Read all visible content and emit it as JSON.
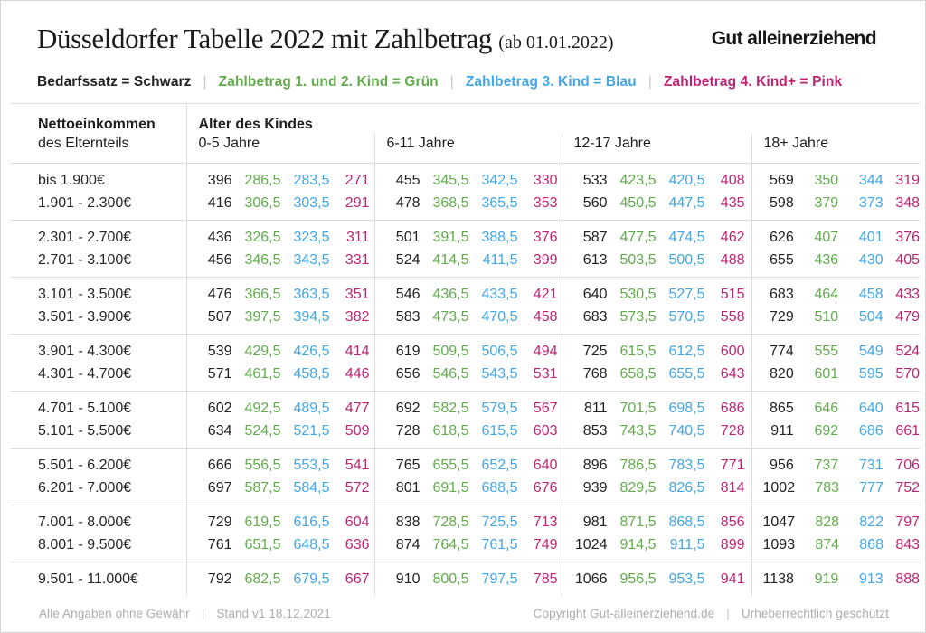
{
  "page": {
    "background": "#ffffff",
    "border_color": "#d6d6d6",
    "grid_line_color": "#dcdcdc"
  },
  "header": {
    "title": "Düsseldorfer Tabelle 2022 mit Zahlbetrag",
    "title_suffix": "(ab 01.01.2022)",
    "brand": "Gut alleinerziehend"
  },
  "legend": {
    "separator": "|",
    "items": [
      {
        "label": "Bedarfssatz = Schwarz",
        "color": "#222222"
      },
      {
        "label": "Zahlbetrag 1. und 2. Kind = Grün",
        "color": "#61ad4b"
      },
      {
        "label": "Zahlbetrag 3. Kind = Blau",
        "color": "#42a7e5"
      },
      {
        "label": "Zahlbetrag 4. Kind+ = Pink",
        "color": "#bd2478"
      }
    ]
  },
  "table_header": {
    "income_line1": "Nettoeinkommen",
    "income_line2": "des Elternteils",
    "age_title": "Alter des Kindes"
  },
  "chart_data": {
    "type": "table",
    "title": "Düsseldorfer Tabelle 2022 mit Zahlbetrag (ab 01.01.2022)",
    "row_axis_label": "Nettoeinkommen des Elternteils",
    "columns": [
      "0-5 Jahre",
      "6-11 Jahre",
      "12-17 Jahre",
      "18+ Jahre"
    ],
    "value_series": [
      "Bedarfssatz",
      "Zahlbetrag 1. und 2. Kind",
      "Zahlbetrag 3. Kind",
      "Zahlbetrag 4. Kind+"
    ],
    "value_colors": [
      "#222222",
      "#61ad4b",
      "#42a7e5",
      "#bd2478"
    ],
    "groups": [
      [
        {
          "income": "bis 1.900€",
          "values": [
            [
              "396",
              "286,5",
              "283,5",
              "271"
            ],
            [
              "455",
              "345,5",
              "342,5",
              "330"
            ],
            [
              "533",
              "423,5",
              "420,5",
              "408"
            ],
            [
              "569",
              "350",
              "344",
              "319"
            ]
          ]
        },
        {
          "income": "1.901 - 2.300€",
          "values": [
            [
              "416",
              "306,5",
              "303,5",
              "291"
            ],
            [
              "478",
              "368,5",
              "365,5",
              "353"
            ],
            [
              "560",
              "450,5",
              "447,5",
              "435"
            ],
            [
              "598",
              "379",
              "373",
              "348"
            ]
          ]
        }
      ],
      [
        {
          "income": "2.301 - 2.700€",
          "values": [
            [
              "436",
              "326,5",
              "323,5",
              "311"
            ],
            [
              "501",
              "391,5",
              "388,5",
              "376"
            ],
            [
              "587",
              "477,5",
              "474,5",
              "462"
            ],
            [
              "626",
              "407",
              "401",
              "376"
            ]
          ]
        },
        {
          "income": "2.701 - 3.100€",
          "values": [
            [
              "456",
              "346,5",
              "343,5",
              "331"
            ],
            [
              "524",
              "414,5",
              "411,5",
              "399"
            ],
            [
              "613",
              "503,5",
              "500,5",
              "488"
            ],
            [
              "655",
              "436",
              "430",
              "405"
            ]
          ]
        }
      ],
      [
        {
          "income": "3.101 - 3.500€",
          "values": [
            [
              "476",
              "366,5",
              "363,5",
              "351"
            ],
            [
              "546",
              "436,5",
              "433,5",
              "421"
            ],
            [
              "640",
              "530,5",
              "527,5",
              "515"
            ],
            [
              "683",
              "464",
              "458",
              "433"
            ]
          ]
        },
        {
          "income": "3.501 - 3.900€",
          "values": [
            [
              "507",
              "397,5",
              "394,5",
              "382"
            ],
            [
              "583",
              "473,5",
              "470,5",
              "458"
            ],
            [
              "683",
              "573,5",
              "570,5",
              "558"
            ],
            [
              "729",
              "510",
              "504",
              "479"
            ]
          ]
        }
      ],
      [
        {
          "income": "3.901 - 4.300€",
          "values": [
            [
              "539",
              "429,5",
              "426,5",
              "414"
            ],
            [
              "619",
              "509,5",
              "506,5",
              "494"
            ],
            [
              "725",
              "615,5",
              "612,5",
              "600"
            ],
            [
              "774",
              "555",
              "549",
              "524"
            ]
          ]
        },
        {
          "income": "4.301 - 4.700€",
          "values": [
            [
              "571",
              "461,5",
              "458,5",
              "446"
            ],
            [
              "656",
              "546,5",
              "543,5",
              "531"
            ],
            [
              "768",
              "658,5",
              "655,5",
              "643"
            ],
            [
              "820",
              "601",
              "595",
              "570"
            ]
          ]
        }
      ],
      [
        {
          "income": "4.701 - 5.100€",
          "values": [
            [
              "602",
              "492,5",
              "489,5",
              "477"
            ],
            [
              "692",
              "582,5",
              "579,5",
              "567"
            ],
            [
              "811",
              "701,5",
              "698,5",
              "686"
            ],
            [
              "865",
              "646",
              "640",
              "615"
            ]
          ]
        },
        {
          "income": "5.101 - 5.500€",
          "values": [
            [
              "634",
              "524,5",
              "521,5",
              "509"
            ],
            [
              "728",
              "618,5",
              "615,5",
              "603"
            ],
            [
              "853",
              "743,5",
              "740,5",
              "728"
            ],
            [
              "911",
              "692",
              "686",
              "661"
            ]
          ]
        }
      ],
      [
        {
          "income": "5.501 - 6.200€",
          "values": [
            [
              "666",
              "556,5",
              "553,5",
              "541"
            ],
            [
              "765",
              "655,5",
              "652,5",
              "640"
            ],
            [
              "896",
              "786,5",
              "783,5",
              "771"
            ],
            [
              "956",
              "737",
              "731",
              "706"
            ]
          ]
        },
        {
          "income": "6.201 - 7.000€",
          "values": [
            [
              "697",
              "587,5",
              "584,5",
              "572"
            ],
            [
              "801",
              "691,5",
              "688,5",
              "676"
            ],
            [
              "939",
              "829,5",
              "826,5",
              "814"
            ],
            [
              "1002",
              "783",
              "777",
              "752"
            ]
          ]
        }
      ],
      [
        {
          "income": "7.001 - 8.000€",
          "values": [
            [
              "729",
              "619,5",
              "616,5",
              "604"
            ],
            [
              "838",
              "728,5",
              "725,5",
              "713"
            ],
            [
              "981",
              "871,5",
              "868,5",
              "856"
            ],
            [
              "1047",
              "828",
              "822",
              "797"
            ]
          ]
        },
        {
          "income": "8.001 - 9.500€",
          "values": [
            [
              "761",
              "651,5",
              "648,5",
              "636"
            ],
            [
              "874",
              "764,5",
              "761,5",
              "749"
            ],
            [
              "1024",
              "914,5",
              "911,5",
              "899"
            ],
            [
              "1093",
              "874",
              "868",
              "843"
            ]
          ]
        }
      ],
      [
        {
          "income": "9.501 - 11.000€",
          "values": [
            [
              "792",
              "682,5",
              "679,5",
              "667"
            ],
            [
              "910",
              "800,5",
              "797,5",
              "785"
            ],
            [
              "1066",
              "956,5",
              "953,5",
              "941"
            ],
            [
              "1138",
              "919",
              "913",
              "888"
            ]
          ]
        }
      ]
    ]
  },
  "footer": {
    "separator": "|",
    "left_items": [
      "Alle Angaben ohne Gewähr",
      "Stand v1 18.12.2021"
    ],
    "right_items": [
      "Copyright Gut-alleinerziehend.de",
      "Urheberrechtlich geschützt"
    ]
  }
}
